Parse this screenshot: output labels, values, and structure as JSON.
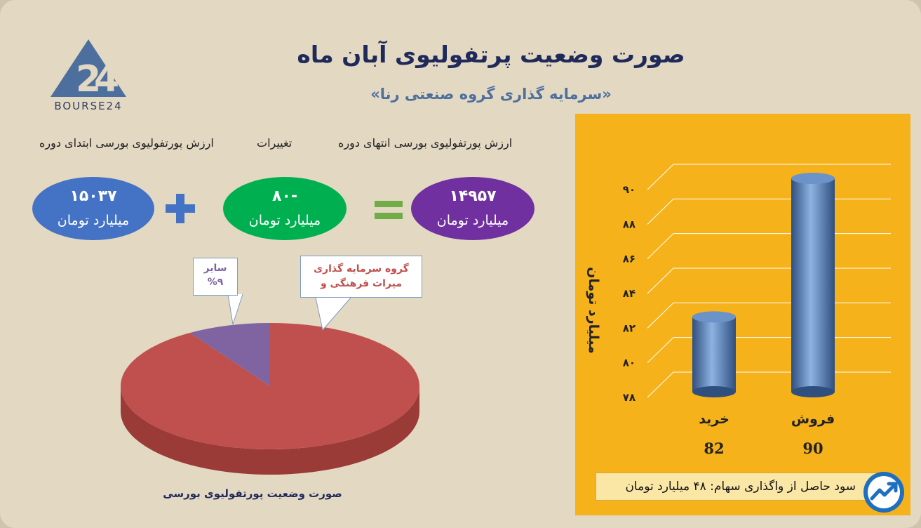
{
  "header": {
    "title": "صورت وضعیت پرتفولیوی آبان ماه",
    "subtitle": "«سرمایه گذاری گروه صنعتی رنا»"
  },
  "logo": {
    "text": "BOURSE24",
    "icon": "logo-24-triangle"
  },
  "equation": {
    "labels": {
      "start": "ارزش پورتفولیوی بورسی ابتدای دوره",
      "change": "تغییرات",
      "end": "ارزش پورتفولیوی بورسی انتهای دوره"
    },
    "start_value": "۱۵۰۳۷",
    "change_value": "-۸۰",
    "end_value": "۱۴۹۵۷",
    "unit": "میلیارد تومان",
    "colors": {
      "start": "#4472c4",
      "change": "#00b050",
      "end": "#7030a0",
      "plus": "#4472c4",
      "equals": "#70ad47"
    }
  },
  "chart_data": [
    {
      "type": "pie",
      "title": "صورت وضعیت پورتفولیوی بورسی",
      "slices": [
        {
          "label": "گروه سرمایه گذاری میراث فرهنگی و",
          "value": 91,
          "color": "#c0504d"
        },
        {
          "label": "سایر",
          "value": 9,
          "display": "%۹",
          "color": "#8064a2"
        }
      ]
    },
    {
      "type": "bar",
      "categories": [
        "فروش",
        "خرید"
      ],
      "values": [
        90,
        82
      ],
      "value_labels": [
        "90",
        "82"
      ],
      "ylabel": "میلیارد تومان",
      "ylim": [
        78,
        90
      ],
      "yticks": [
        "۷۸",
        "۸۰",
        "۸۲",
        "۸۴",
        "۸۶",
        "۸۸",
        "۹۰"
      ],
      "grid": true,
      "bar_color": "#4f81bd",
      "background": "#f5b21a"
    }
  ],
  "footer": {
    "profit_text": "سود حاصل از واگذاری سهام:  ۴۸  میلیارد تومان",
    "badge_icon": "trend-arrow-icon"
  }
}
